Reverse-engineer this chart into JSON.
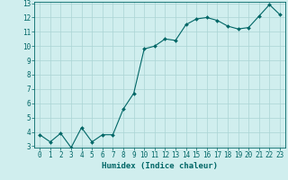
{
  "title": "",
  "xlabel": "Humidex (Indice chaleur)",
  "ylabel": "",
  "x_values": [
    0,
    1,
    2,
    3,
    4,
    5,
    6,
    7,
    8,
    9,
    10,
    11,
    12,
    13,
    14,
    15,
    16,
    17,
    18,
    19,
    20,
    21,
    22,
    23
  ],
  "y_values": [
    3.8,
    3.3,
    3.9,
    2.9,
    4.3,
    3.3,
    3.8,
    3.8,
    5.6,
    6.7,
    9.8,
    10.0,
    10.5,
    10.4,
    11.5,
    11.9,
    12.0,
    11.8,
    11.4,
    11.2,
    11.3,
    12.1,
    12.9,
    12.2
  ],
  "line_color": "#006666",
  "marker_color": "#006666",
  "bg_color": "#d0eeee",
  "grid_color": "#aad4d4",
  "axis_color": "#006666",
  "tick_color": "#006666",
  "label_color": "#006666",
  "ylim": [
    3,
    13
  ],
  "xlim": [
    -0.5,
    23.5
  ],
  "yticks": [
    3,
    4,
    5,
    6,
    7,
    8,
    9,
    10,
    11,
    12,
    13
  ],
  "xticks": [
    0,
    1,
    2,
    3,
    4,
    5,
    6,
    7,
    8,
    9,
    10,
    11,
    12,
    13,
    14,
    15,
    16,
    17,
    18,
    19,
    20,
    21,
    22,
    23
  ],
  "font_size": 5.5,
  "xlabel_fontsize": 6.5,
  "marker_size": 2,
  "line_width": 0.8
}
